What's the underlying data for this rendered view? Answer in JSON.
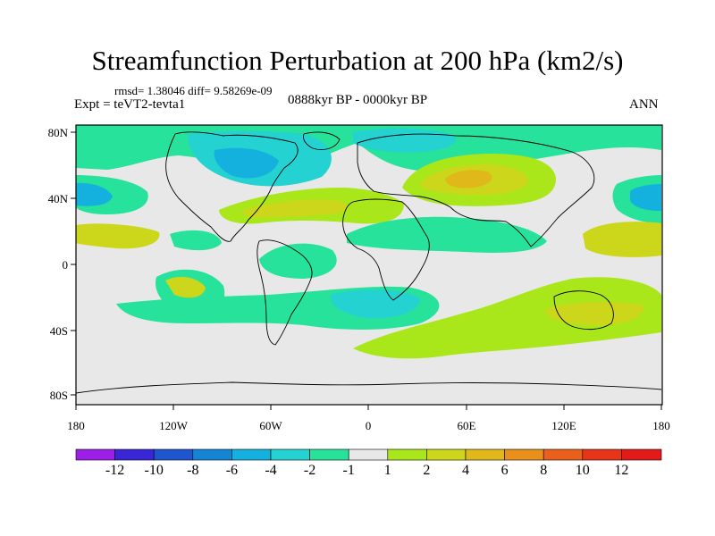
{
  "title": "Streamfunction Perturbation at 200 hPa (km2/s)",
  "stats": "rmsd= 1.38046 diff= 9.58269e-09",
  "experiment": "Expt = teVT2-tevta1",
  "period": "0888kyr BP - 0000kyr BP",
  "season": "ANN",
  "axes": {
    "x_ticks": [
      "180",
      "120W",
      "60W",
      "0",
      "60E",
      "120E",
      "180"
    ],
    "y_ticks": [
      "80N",
      "40N",
      "0",
      "40S",
      "80S"
    ]
  },
  "colorbar": {
    "labels": [
      "-12",
      "-10",
      "-8",
      "-6",
      "-4",
      "-2",
      "-1",
      "1",
      "2",
      "4",
      "6",
      "8",
      "10",
      "12"
    ],
    "colors": [
      "#9b1fe6",
      "#3b25d9",
      "#1f56cf",
      "#1485d6",
      "#14b0de",
      "#24d2d2",
      "#26e29a",
      "#e8e8e8",
      "#a9e61a",
      "#ccd61a",
      "#e0b81a",
      "#e8901a",
      "#ea601a",
      "#e8351a",
      "#e21a1a"
    ]
  }
}
